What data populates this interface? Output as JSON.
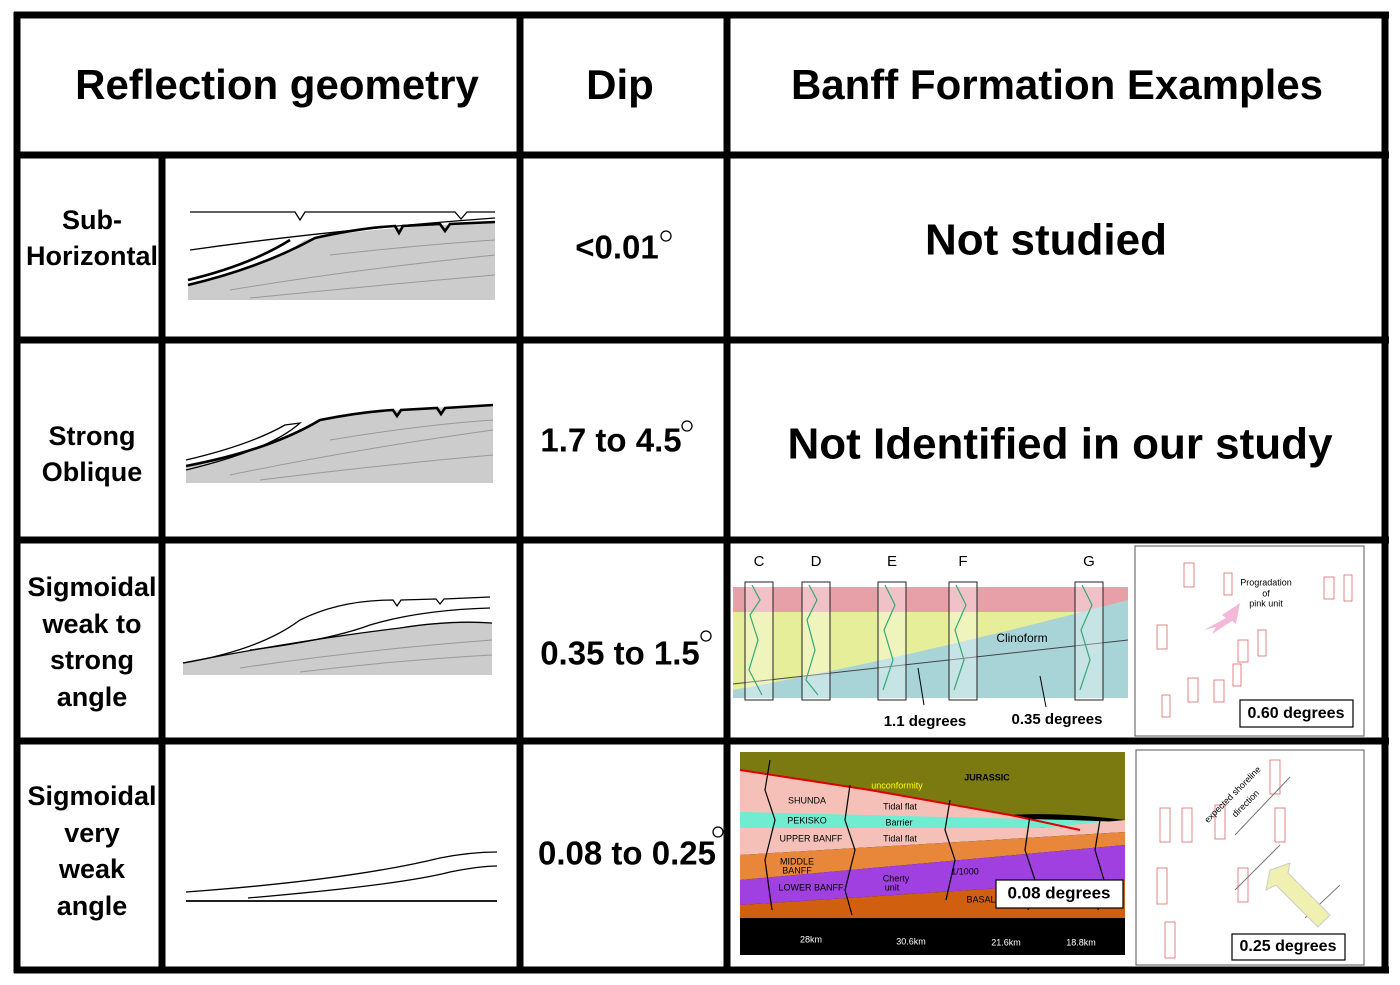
{
  "header": {
    "columns": [
      "Reflection geometry",
      "Dip",
      "Banff Formation Examples"
    ]
  },
  "rows": [
    {
      "name": [
        "Sub-",
        "Horizontal"
      ],
      "dip": "<0.01",
      "example": "Not studied"
    },
    {
      "name": [
        "Strong",
        "Oblique"
      ],
      "dip": "1.7 to 4.5",
      "example": "Not Identified in our study"
    },
    {
      "name": [
        "Sigmoidal",
        "weak to",
        "strong",
        "angle"
      ],
      "dip": "0.35 to 1.5",
      "example": {
        "cross_section": {
          "wells": [
            "C",
            "D",
            "E",
            "F",
            "G"
          ],
          "labels": [
            "Clinoform",
            "1.1 degrees",
            "0.35 degrees"
          ]
        },
        "map": {
          "labels": [
            "Progradation",
            "of",
            "pink unit"
          ],
          "dip_label": "0.60 degrees"
        }
      }
    },
    {
      "name": [
        "Sigmoidal",
        "very",
        "weak",
        "angle"
      ],
      "dip": "0.08 to 0.25",
      "example": {
        "cross_section": {
          "units": [
            "JURASSIC",
            "unconformity",
            "SHUNDA",
            "Tidal flat",
            "PEKISKO",
            "Barrier",
            "UPPER BANFF",
            "Tidal flat",
            "MIDDLE",
            "BANFF",
            "LOWER BANFF",
            "Cherty",
            "unit",
            "1/1000",
            "BASAL"
          ],
          "distances": [
            "28km",
            "30.6km",
            "21.6km",
            "18.8km"
          ],
          "dip_label": "0.08 degrees"
        },
        "map": {
          "labels": [
            "expected shoreline",
            "direction"
          ],
          "dip_label": "0.25 degrees"
        }
      }
    }
  ]
}
